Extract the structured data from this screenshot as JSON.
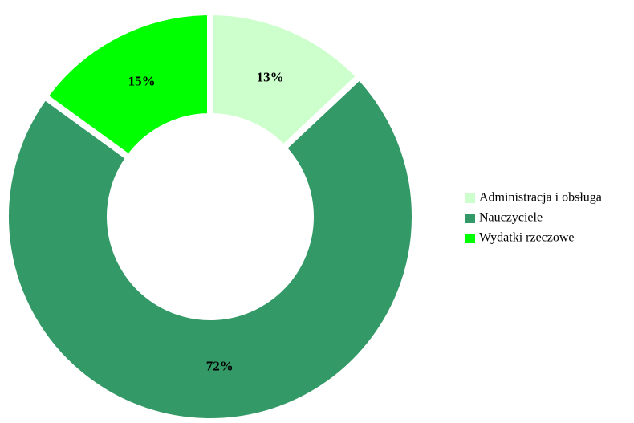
{
  "chart_data": {
    "type": "donut",
    "categories": [
      "Administracja i obsługa",
      "Nauczyciele",
      "Wydatki rzeczowe"
    ],
    "values": [
      13,
      72,
      15
    ],
    "value_labels": [
      "13%",
      "72%",
      "15%"
    ],
    "colors": [
      "#ccffcc",
      "#339966",
      "#00ff00"
    ],
    "legend": "right"
  }
}
